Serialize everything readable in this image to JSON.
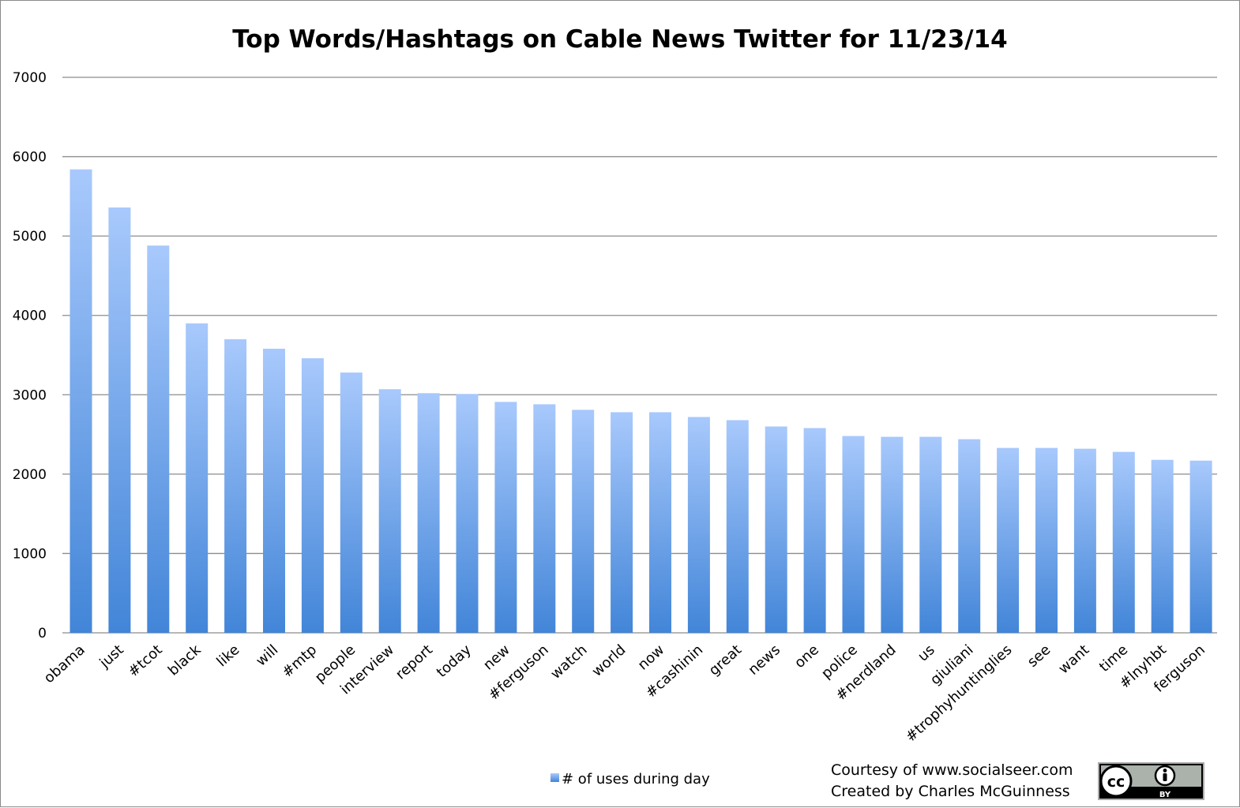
{
  "chart_data": {
    "type": "bar",
    "title": "Top Words/Hashtags on Cable News Twitter for 11/23/14",
    "xlabel": "",
    "ylabel": "",
    "ylim": [
      0,
      7000
    ],
    "yticks": [
      0,
      1000,
      2000,
      3000,
      4000,
      5000,
      6000,
      7000
    ],
    "grid": true,
    "legend_position": "bottom",
    "categories": [
      "obama",
      "just",
      "#tcot",
      "black",
      "like",
      "will",
      "#mtp",
      "people",
      "interview",
      "report",
      "today",
      "new",
      "#ferguson",
      "watch",
      "world",
      "now",
      "#cashinin",
      "great",
      "news",
      "one",
      "police",
      "#nerdland",
      "us",
      "giuliani",
      "#trophyhuntinglies",
      "see",
      "want",
      "time",
      "#lnyhbt",
      "ferguson"
    ],
    "series": [
      {
        "name": "# of uses during day",
        "values": [
          5840,
          5360,
          4880,
          3900,
          3700,
          3580,
          3460,
          3280,
          3070,
          3020,
          3010,
          2910,
          2880,
          2810,
          2780,
          2780,
          2720,
          2680,
          2600,
          2580,
          2480,
          2470,
          2470,
          2440,
          2330,
          2330,
          2320,
          2280,
          2180,
          2170
        ]
      }
    ],
    "colors": {
      "bar_top": "#a8c9fc",
      "bar_bottom": "#4285d8",
      "grid": "#8c8c8c"
    }
  },
  "credits": {
    "line1": "Courtesy of www.socialseer.com",
    "line2": "Created by Charles McGuinness"
  },
  "license_badge": {
    "icons": [
      "cc-icon",
      "person-icon"
    ],
    "text": "BY"
  }
}
